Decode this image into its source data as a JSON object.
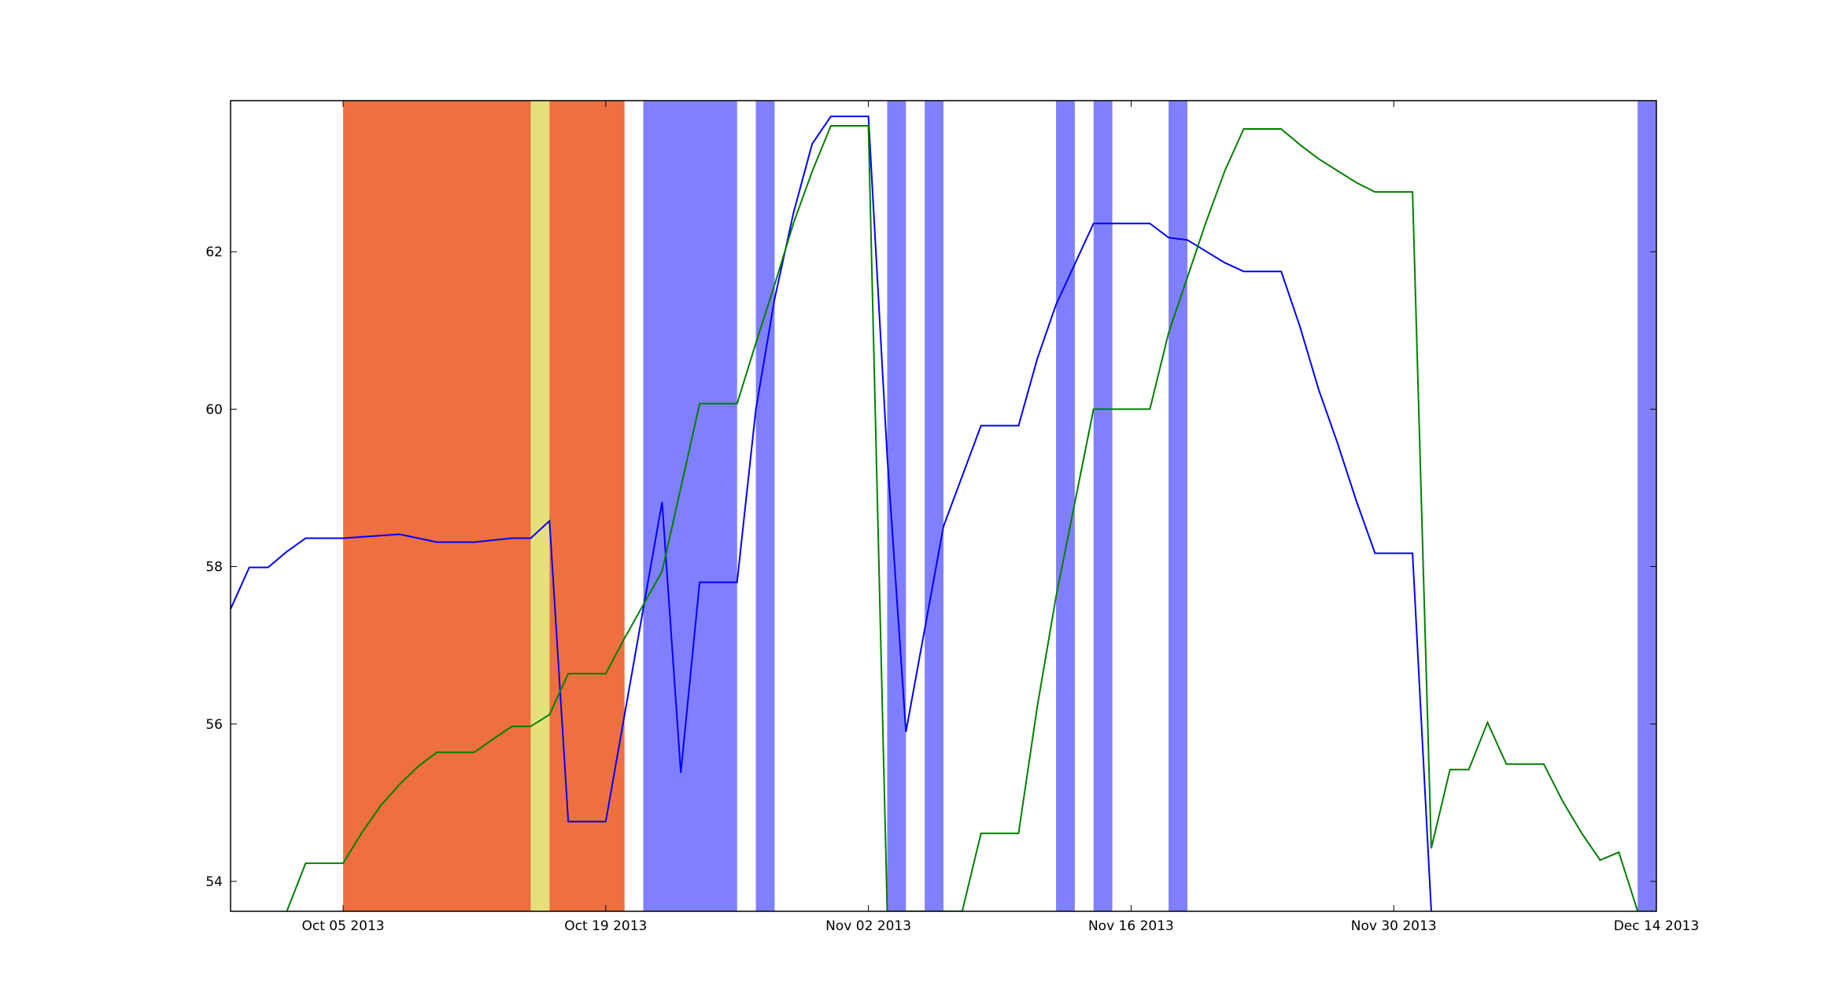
{
  "chart_data": {
    "type": "line",
    "title": "",
    "xlabel": "",
    "ylabel": "",
    "x_axis": {
      "kind": "date",
      "range": [
        "2013-09-29",
        "2013-12-14"
      ],
      "tick_labels": [
        {
          "date": "2013-10-05",
          "label": "Oct 05 2013"
        },
        {
          "date": "2013-10-19",
          "label": "Oct 19 2013"
        },
        {
          "date": "2013-11-02",
          "label": "Nov 02 2013"
        },
        {
          "date": "2013-11-16",
          "label": "Nov 16 2013"
        },
        {
          "date": "2013-11-30",
          "label": "Nov 30 2013"
        },
        {
          "date": "2013-12-14",
          "label": "Dec 14 2013"
        }
      ]
    },
    "y_axis": {
      "range": [
        53.62,
        63.92
      ],
      "ticks": [
        54,
        56,
        58,
        60,
        62
      ],
      "tick_labels": [
        "54",
        "56",
        "58",
        "60",
        "62"
      ]
    },
    "grid": false,
    "legend": "none",
    "shaded_spans": [
      {
        "start": "2013-10-05",
        "end": "2013-10-15",
        "color": "#ee7040"
      },
      {
        "start": "2013-10-15",
        "end": "2013-10-16",
        "color": "#e5e07c"
      },
      {
        "start": "2013-10-16",
        "end": "2013-10-20",
        "color": "#ee7040"
      },
      {
        "start": "2013-10-21",
        "end": "2013-10-26",
        "color": "#8080ff"
      },
      {
        "start": "2013-10-27",
        "end": "2013-10-28",
        "color": "#8080ff"
      },
      {
        "start": "2013-11-03",
        "end": "2013-11-04",
        "color": "#8080ff"
      },
      {
        "start": "2013-11-05",
        "end": "2013-11-06",
        "color": "#8080ff"
      },
      {
        "start": "2013-11-12",
        "end": "2013-11-13",
        "color": "#8080ff"
      },
      {
        "start": "2013-11-14",
        "end": "2013-11-15",
        "color": "#8080ff"
      },
      {
        "start": "2013-11-18",
        "end": "2013-11-19",
        "color": "#8080ff"
      },
      {
        "start": "2013-12-13",
        "end": "2013-12-14",
        "color": "#8080ff"
      }
    ],
    "series": [
      {
        "color": "#0000ff",
        "points": [
          [
            "2013-09-29",
            57.46
          ],
          [
            "2013-09-30",
            57.99
          ],
          [
            "2013-10-01",
            57.99
          ],
          [
            "2013-10-02",
            58.19
          ],
          [
            "2013-10-03",
            58.36
          ],
          [
            "2013-10-05",
            58.36
          ],
          [
            "2013-10-08",
            58.41
          ],
          [
            "2013-10-10",
            58.31
          ],
          [
            "2013-10-12",
            58.31
          ],
          [
            "2013-10-14",
            58.36
          ],
          [
            "2013-10-15",
            58.36
          ],
          [
            "2013-10-16",
            58.58
          ],
          [
            "2013-10-17",
            54.76
          ],
          [
            "2013-10-19",
            54.76
          ],
          [
            "2013-10-22",
            58.82
          ],
          [
            "2013-10-23",
            55.38
          ],
          [
            "2013-10-24",
            57.8
          ],
          [
            "2013-10-26",
            57.8
          ],
          [
            "2013-10-27",
            60.0
          ],
          [
            "2013-10-28",
            61.4
          ],
          [
            "2013-10-29",
            62.49
          ],
          [
            "2013-10-30",
            63.37
          ],
          [
            "2013-10-31",
            63.72
          ],
          [
            "2013-11-02",
            63.72
          ],
          [
            "2013-11-03",
            59.4
          ],
          [
            "2013-11-04",
            55.9
          ],
          [
            "2013-11-06",
            58.51
          ],
          [
            "2013-11-08",
            59.79
          ],
          [
            "2013-11-10",
            59.79
          ],
          [
            "2013-11-11",
            60.64
          ],
          [
            "2013-11-12",
            61.33
          ],
          [
            "2013-11-14",
            62.36
          ],
          [
            "2013-11-17",
            62.36
          ],
          [
            "2013-11-18",
            62.18
          ],
          [
            "2013-11-19",
            62.15
          ],
          [
            "2013-11-21",
            61.86
          ],
          [
            "2013-11-22",
            61.75
          ],
          [
            "2013-11-24",
            61.75
          ],
          [
            "2013-11-25",
            61.05
          ],
          [
            "2013-11-26",
            60.25
          ],
          [
            "2013-11-27",
            59.57
          ],
          [
            "2013-11-28",
            58.84
          ],
          [
            "2013-11-29",
            58.17
          ],
          [
            "2013-12-01",
            58.17
          ],
          [
            "2013-12-02",
            53.62
          ]
        ]
      },
      {
        "color": "#008000",
        "points": [
          [
            "2013-10-02",
            53.62
          ],
          [
            "2013-10-03",
            54.23
          ],
          [
            "2013-10-05",
            54.23
          ],
          [
            "2013-10-06",
            54.62
          ],
          [
            "2013-10-07",
            54.96
          ],
          [
            "2013-10-08",
            55.23
          ],
          [
            "2013-10-09",
            55.46
          ],
          [
            "2013-10-10",
            55.64
          ],
          [
            "2013-10-12",
            55.64
          ],
          [
            "2013-10-13",
            55.81
          ],
          [
            "2013-10-14",
            55.97
          ],
          [
            "2013-10-15",
            55.97
          ],
          [
            "2013-10-16",
            56.12
          ],
          [
            "2013-10-17",
            56.64
          ],
          [
            "2013-10-19",
            56.64
          ],
          [
            "2013-10-20",
            57.09
          ],
          [
            "2013-10-22",
            57.94
          ],
          [
            "2013-10-23",
            59.0
          ],
          [
            "2013-10-24",
            60.07
          ],
          [
            "2013-10-26",
            60.07
          ],
          [
            "2013-10-27",
            60.84
          ],
          [
            "2013-10-28",
            61.58
          ],
          [
            "2013-10-29",
            62.36
          ],
          [
            "2013-10-30",
            63.02
          ],
          [
            "2013-10-31",
            63.6
          ],
          [
            "2013-11-02",
            63.6
          ],
          [
            "2013-11-03",
            53.62
          ],
          [
            "2013-11-07",
            53.62
          ],
          [
            "2013-11-08",
            54.61
          ],
          [
            "2013-11-10",
            54.61
          ],
          [
            "2013-11-11",
            56.22
          ],
          [
            "2013-11-12",
            57.62
          ],
          [
            "2013-11-14",
            60.0
          ],
          [
            "2013-11-17",
            60.0
          ],
          [
            "2013-11-18",
            60.97
          ],
          [
            "2013-11-20",
            62.38
          ],
          [
            "2013-11-21",
            63.03
          ],
          [
            "2013-11-22",
            63.56
          ],
          [
            "2013-11-24",
            63.56
          ],
          [
            "2013-11-25",
            63.36
          ],
          [
            "2013-11-26",
            63.18
          ],
          [
            "2013-11-27",
            63.03
          ],
          [
            "2013-11-28",
            62.88
          ],
          [
            "2013-11-29",
            62.76
          ],
          [
            "2013-12-01",
            62.76
          ],
          [
            "2013-12-02",
            54.42
          ],
          [
            "2013-12-03",
            55.42
          ],
          [
            "2013-12-04",
            55.42
          ],
          [
            "2013-12-05",
            56.02
          ],
          [
            "2013-12-06",
            55.49
          ],
          [
            "2013-12-08",
            55.49
          ],
          [
            "2013-12-09",
            55.02
          ],
          [
            "2013-12-10",
            54.62
          ],
          [
            "2013-12-11",
            54.27
          ],
          [
            "2013-12-12",
            54.37
          ],
          [
            "2013-12-13",
            53.62
          ]
        ]
      }
    ]
  }
}
